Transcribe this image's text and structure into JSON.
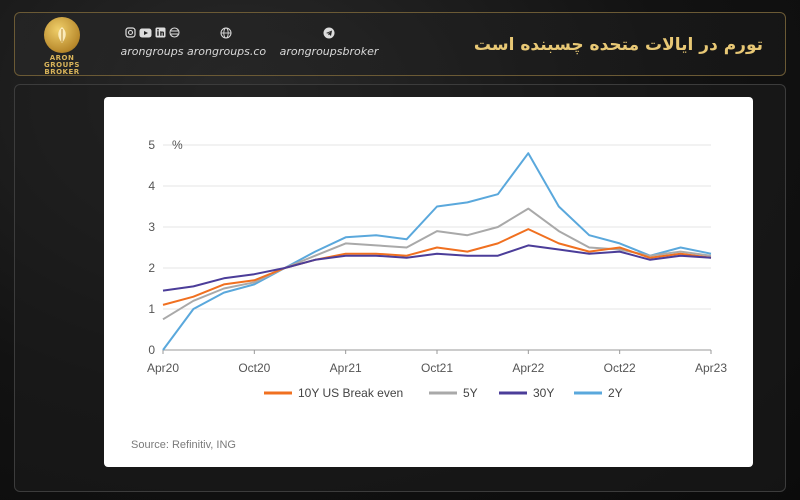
{
  "header": {
    "title": "تورم در ایالات متحده چسبنده است",
    "brand": "ARON GROUPS BROKER",
    "social": [
      {
        "label": "arongroups",
        "icons": [
          "instagram-icon",
          "youtube-icon",
          "linkedin-icon",
          "globe-grid-icon"
        ]
      },
      {
        "label": "arongroups.co",
        "icons": [
          "globe-icon"
        ]
      },
      {
        "label": "arongroupsbroker",
        "icons": [
          "telegram-icon"
        ]
      }
    ]
  },
  "colors": {
    "accent": "#d9b45a",
    "s10y": "#f07020",
    "s5y": "#a9a9a9",
    "s30y": "#4b3d99",
    "s2y": "#5aa8dc"
  },
  "chart_data": {
    "type": "line",
    "y_unit": "%",
    "ylim": [
      0,
      5
    ],
    "yticks": [
      "0",
      "1",
      "2",
      "3",
      "4",
      "5"
    ],
    "xticks": [
      "Apr20",
      "Oct20",
      "Apr21",
      "Oct21",
      "Apr22",
      "Oct22",
      "Apr23"
    ],
    "x": [
      "Apr20",
      "Jun20",
      "Aug20",
      "Oct20",
      "Dec20",
      "Feb21",
      "Apr21",
      "Jun21",
      "Aug21",
      "Oct21",
      "Dec21",
      "Feb22",
      "Apr22",
      "Jun22",
      "Aug22",
      "Oct22",
      "Dec22",
      "Feb23",
      "Apr23"
    ],
    "series": [
      {
        "name": "10Y US Break even",
        "color": "#f07020",
        "values": [
          1.1,
          1.3,
          1.6,
          1.7,
          2.0,
          2.2,
          2.35,
          2.35,
          2.3,
          2.5,
          2.4,
          2.6,
          2.95,
          2.6,
          2.4,
          2.5,
          2.25,
          2.35,
          2.25
        ]
      },
      {
        "name": "5Y",
        "color": "#a9a9a9",
        "values": [
          0.75,
          1.2,
          1.5,
          1.65,
          2.0,
          2.3,
          2.6,
          2.55,
          2.5,
          2.9,
          2.8,
          3.0,
          3.45,
          2.9,
          2.5,
          2.45,
          2.3,
          2.4,
          2.3
        ]
      },
      {
        "name": "30Y",
        "color": "#4b3d99",
        "values": [
          1.45,
          1.55,
          1.75,
          1.85,
          2.0,
          2.2,
          2.3,
          2.3,
          2.25,
          2.35,
          2.3,
          2.3,
          2.55,
          2.45,
          2.35,
          2.4,
          2.2,
          2.3,
          2.25
        ]
      },
      {
        "name": "2Y",
        "color": "#5aa8dc",
        "values": [
          0.0,
          1.0,
          1.4,
          1.6,
          2.0,
          2.4,
          2.75,
          2.8,
          2.7,
          3.5,
          3.6,
          3.8,
          4.8,
          3.5,
          2.8,
          2.6,
          2.3,
          2.5,
          2.35
        ]
      }
    ],
    "source": "Source: Refinitiv, ING"
  }
}
